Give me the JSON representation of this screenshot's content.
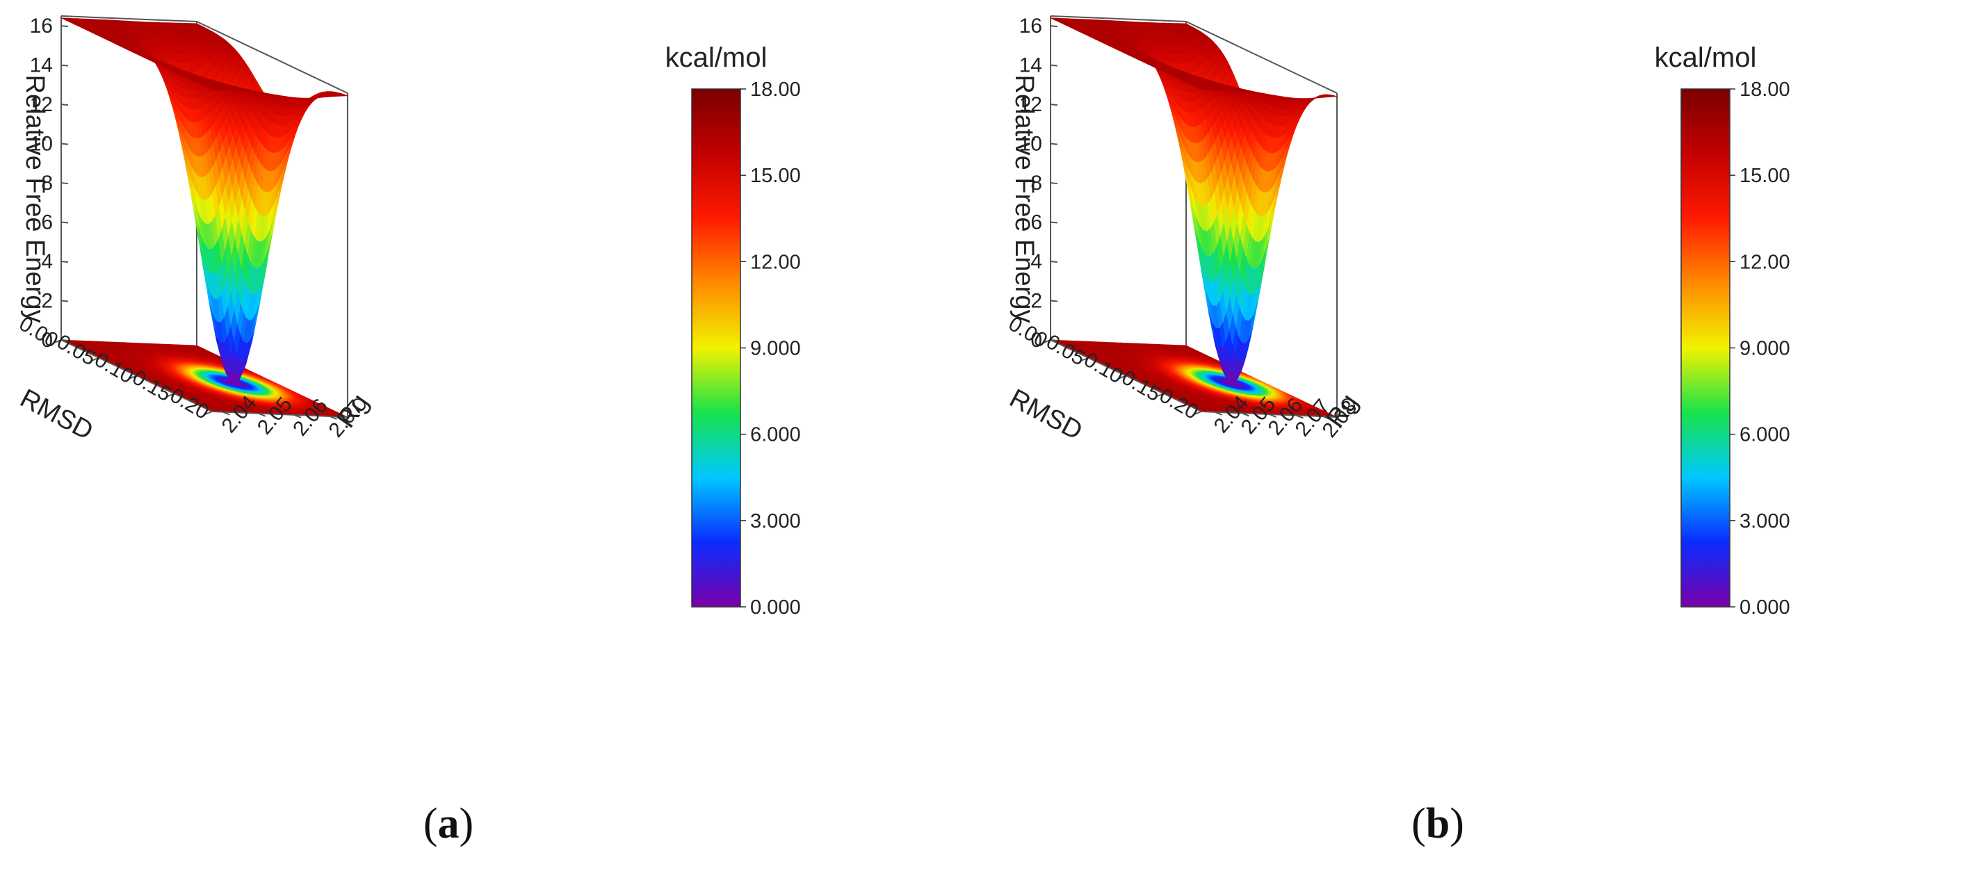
{
  "panels": [
    {
      "label": "a",
      "chart_data": {
        "type": "surface3d",
        "xlabel": "RMSD",
        "ylabel": "Rg",
        "zlabel": "Relative Free Energy",
        "x_ticks": [
          "0.00",
          "0.05",
          "0.10",
          "0.15",
          "0.20"
        ],
        "y_ticks": [
          "2.04",
          "2.05",
          "2.06",
          "2.07"
        ],
        "z_ticks": [
          "0",
          "2",
          "4",
          "6",
          "8",
          "10",
          "12",
          "14",
          "16"
        ],
        "xlim": [
          0.0,
          0.2
        ],
        "ylim": [
          2.037,
          2.075
        ],
        "zlim": [
          0,
          16.5
        ],
        "minimum": {
          "x": 0.11,
          "y": 2.062,
          "z": 0.0
        },
        "plateau_z": 16.4,
        "colorbar": {
          "title": "kcal/mol",
          "ticks": [
            "0.000",
            "3.000",
            "6.000",
            "9.000",
            "12.00",
            "15.00",
            "18.00"
          ],
          "range": [
            0,
            18
          ]
        }
      }
    },
    {
      "label": "b",
      "chart_data": {
        "type": "surface3d",
        "xlabel": "RMSD",
        "ylabel": "Rg",
        "zlabel": "Relative Free Energy",
        "x_ticks": [
          "0.00",
          "0.05",
          "0.10",
          "0.15",
          "0.20"
        ],
        "y_ticks": [
          "2.04",
          "2.05",
          "2.06",
          "2.07",
          "2.08"
        ],
        "z_ticks": [
          "0",
          "2",
          "4",
          "6",
          "8",
          "10",
          "12",
          "14",
          "16"
        ],
        "xlim": [
          0.0,
          0.2
        ],
        "ylim": [
          2.035,
          2.085
        ],
        "zlim": [
          0,
          16.5
        ],
        "minimum": {
          "x": 0.11,
          "y": 2.071,
          "z": 0.0
        },
        "plateau_z": 16.4,
        "colorbar": {
          "title": "kcal/mol",
          "ticks": [
            "0.000",
            "3.000",
            "6.000",
            "9.000",
            "12.00",
            "15.00",
            "18.00"
          ],
          "range": [
            0,
            18
          ]
        }
      }
    }
  ],
  "colors": {
    "stops": [
      "#7a00a8",
      "#0a2cff",
      "#00c8ff",
      "#18e24a",
      "#f2f200",
      "#ff8a00",
      "#ff1a00",
      "#c40000",
      "#7a0000"
    ],
    "axis_line": "#555555",
    "floor": "#cc0a00"
  }
}
